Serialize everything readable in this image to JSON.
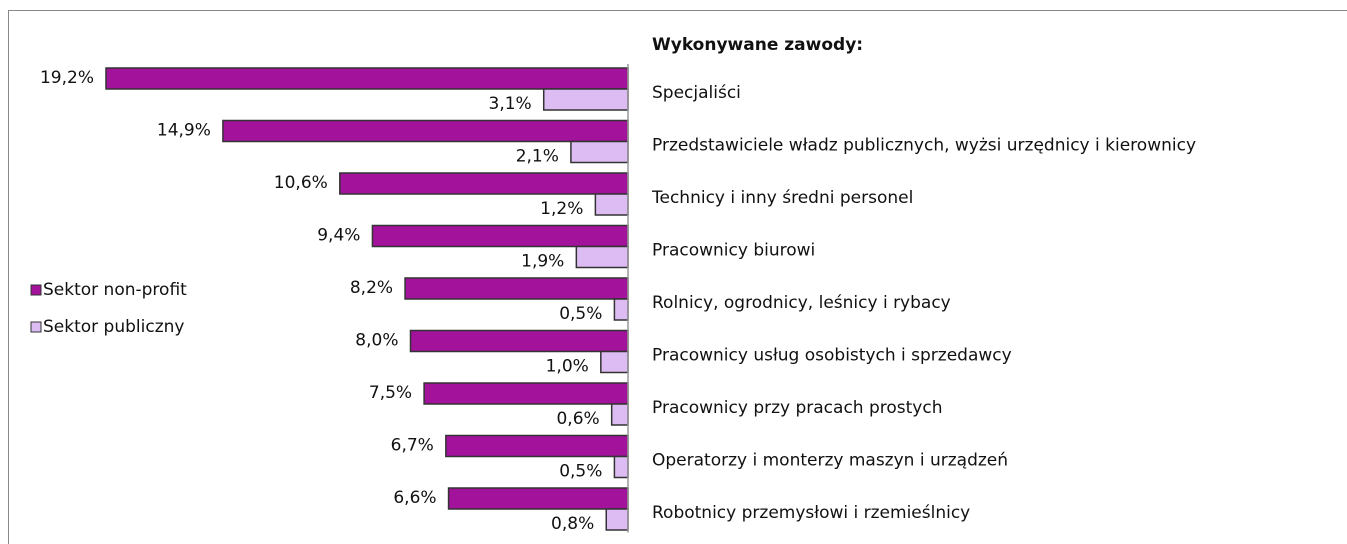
{
  "chart_data": {
    "type": "hbar-left",
    "category_header": "Wykonywane zawody:",
    "categories": [
      "Specjaliści",
      "Przedstawiciele władz publicznych, wyżsi urzędnicy i kierownicy",
      "Technicy i inny średni personel",
      "Pracownicy biurowi",
      "Rolnicy, ogrodnicy, leśnicy i rybacy",
      "Pracownicy usług osobistych i sprzedawcy",
      "Pracownicy przy pracach prostych",
      "Operatorzy i monterzy maszyn i urządzeń",
      "Robotnicy przemysłowi i rzemieślnicy"
    ],
    "series": [
      {
        "name": "Sektor non-profit",
        "color": "#a3129a",
        "values": [
          19.2,
          14.9,
          10.6,
          9.4,
          8.2,
          8.0,
          7.5,
          6.7,
          6.6
        ],
        "value_labels": [
          "19,2%",
          "14,9%",
          "10,6%",
          "9,4%",
          "8,2%",
          "8,0%",
          "7,5%",
          "6,7%",
          "6,6%"
        ]
      },
      {
        "name": "Sektor publiczny",
        "color": "#dcbcf2",
        "values": [
          3.1,
          2.1,
          1.2,
          1.9,
          0.5,
          1.0,
          0.6,
          0.5,
          0.8
        ],
        "value_labels": [
          "3,1%",
          "2,1%",
          "1,2%",
          "1,9%",
          "0,5%",
          "1,0%",
          "0,6%",
          "0,5%",
          "0,8%"
        ]
      }
    ]
  }
}
